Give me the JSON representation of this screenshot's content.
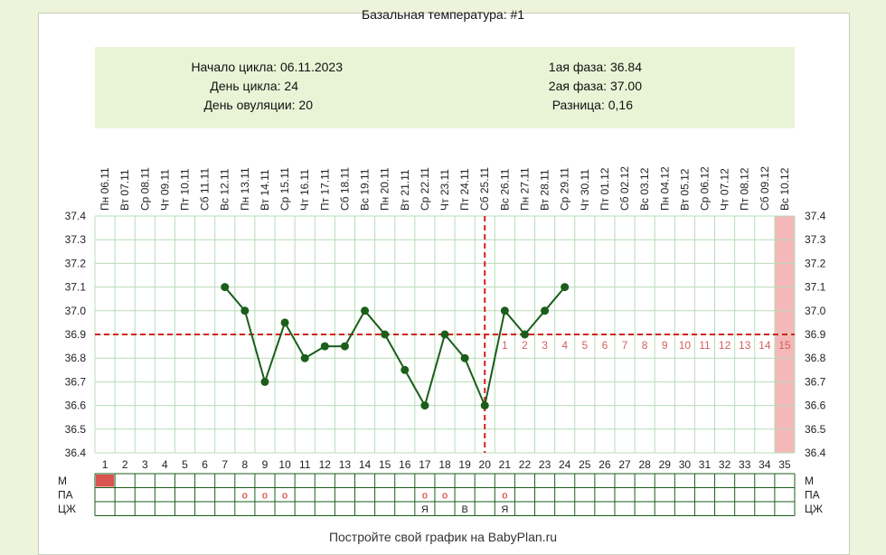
{
  "title": "Базальная температура: #1",
  "info": {
    "start": "Начало цикла: 06.11.2023",
    "day": "День цикла: 24",
    "ovulation": "День овуляции: 20",
    "phase1": "1ая фаза: 36.84",
    "phase2": "2ая фаза: 37.00",
    "diff": "Разница: 0,16"
  },
  "footer": "Постройте свой график на BabyPlan.ru",
  "colors": {
    "line": "#1a5e1a",
    "grid": "#b8dcb8",
    "coverline": "#d42020",
    "future_day": "#f4b8b8",
    "menses": "#d9534f",
    "luteal_number": "#d46060"
  },
  "chart_data": {
    "type": "line",
    "title": "Базальная температура: #1",
    "xlabel": "",
    "ylabel": "",
    "ylim": [
      36.4,
      37.4
    ],
    "y_ticks": [
      "37.4",
      "37.3",
      "37.2",
      "37.1",
      "37.0",
      "36.9",
      "36.8",
      "36.7",
      "36.6",
      "36.5",
      "36.4"
    ],
    "cycle_days": [
      1,
      2,
      3,
      4,
      5,
      6,
      7,
      8,
      9,
      10,
      11,
      12,
      13,
      14,
      15,
      16,
      17,
      18,
      19,
      20,
      21,
      22,
      23,
      24,
      25,
      26,
      27,
      28,
      29,
      30,
      31,
      32,
      33,
      34,
      35
    ],
    "weekdays": [
      "Пн",
      "Вт",
      "Ср",
      "Чт",
      "Пт",
      "Сб",
      "Вс",
      "Пн",
      "Вт",
      "Ср",
      "Чт",
      "Пт",
      "Сб",
      "Вс",
      "Пн",
      "Вт",
      "Ср",
      "Чт",
      "Пт",
      "Сб",
      "Вс",
      "Пн",
      "Вт",
      "Ср",
      "Чт",
      "Пт",
      "Сб",
      "Вс",
      "Пн",
      "Вт",
      "Ср",
      "Чт",
      "Пт",
      "Сб",
      "Вс"
    ],
    "dates": [
      "06.11",
      "07.11",
      "08.11",
      "09.11",
      "10.11",
      "11.11",
      "12.11",
      "13.11",
      "14.11",
      "15.11",
      "16.11",
      "17.11",
      "18.11",
      "19.11",
      "20.11",
      "21.11",
      "22.11",
      "23.11",
      "24.11",
      "25.11",
      "26.11",
      "27.11",
      "28.11",
      "29.11",
      "30.11",
      "01.12",
      "02.12",
      "03.12",
      "04.12",
      "05.12",
      "06.12",
      "07.12",
      "08.12",
      "09.12",
      "10.12"
    ],
    "series": [
      {
        "values": [
          null,
          null,
          null,
          null,
          null,
          null,
          37.1,
          37.0,
          36.7,
          36.95,
          36.8,
          36.85,
          36.85,
          37.0,
          36.9,
          36.75,
          36.6,
          36.9,
          36.8,
          36.6,
          37.0,
          36.9,
          37.0,
          37.1,
          null,
          null,
          null,
          null,
          null,
          null,
          null,
          null,
          null,
          null,
          null
        ]
      }
    ],
    "coverline": 36.9,
    "ovulation_day": 20,
    "luteal_labels": [
      "1",
      "2",
      "3",
      "4",
      "5",
      "6",
      "7",
      "8",
      "9",
      "10",
      "11",
      "12",
      "13",
      "14",
      "15"
    ],
    "luteal_start_day": 21,
    "highlight_day": 35,
    "legend": "none",
    "grid": true
  },
  "rows": {
    "labels": [
      "М",
      "ПА",
      "ЦЖ"
    ],
    "m_days": [
      1
    ],
    "pa_days": [
      8,
      9,
      10,
      17,
      18,
      21
    ],
    "pa_symbol": "o",
    "cm": [
      {
        "day": 17,
        "text": "Я"
      },
      {
        "day": 19,
        "text": "В"
      },
      {
        "day": 21,
        "text": "Я"
      }
    ]
  }
}
